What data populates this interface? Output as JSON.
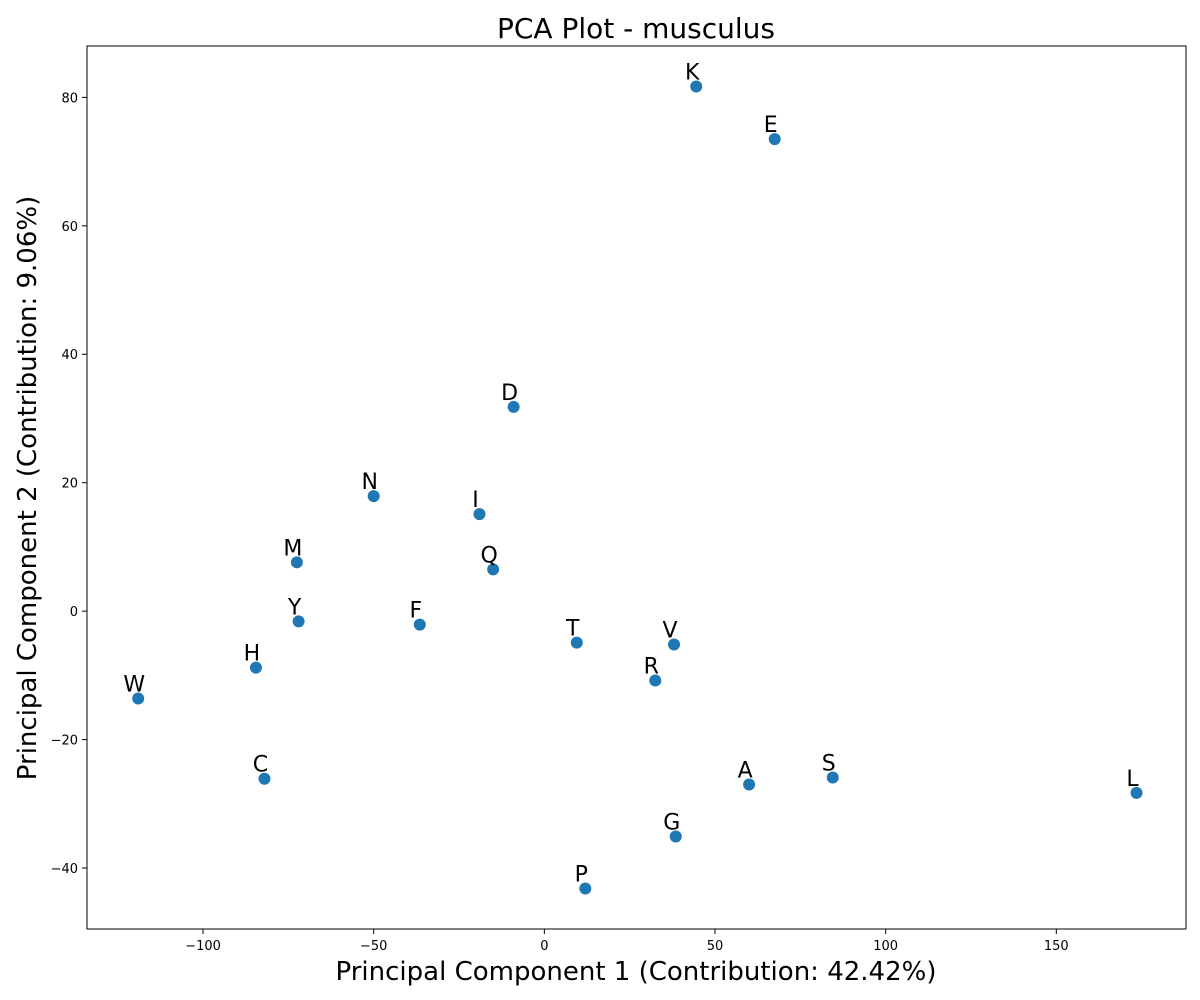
{
  "chart_data": {
    "type": "scatter",
    "title": "PCA Plot - musculus",
    "xlabel": "Principal Component 1 (Contribution: 42.42%)",
    "ylabel": "Principal Component 2 (Contribution: 9.06%)",
    "xlim": [
      -134,
      188
    ],
    "ylim": [
      -49.5,
      88
    ],
    "xticks": [
      -100,
      -50,
      0,
      50,
      100,
      150
    ],
    "yticks": [
      -40,
      -20,
      0,
      20,
      40,
      60,
      80
    ],
    "xtick_labels": [
      "−100",
      "−50",
      "0",
      "50",
      "100",
      "150"
    ],
    "ytick_labels": [
      "−40",
      "−20",
      "0",
      "20",
      "40",
      "60",
      "80"
    ],
    "grid": false,
    "point_color": "#1f77b4",
    "points": [
      {
        "label": "K",
        "x": 44.5,
        "y": 81.7
      },
      {
        "label": "E",
        "x": 67.5,
        "y": 73.5
      },
      {
        "label": "D",
        "x": -9,
        "y": 31.8
      },
      {
        "label": "N",
        "x": -50,
        "y": 17.9
      },
      {
        "label": "I",
        "x": -19,
        "y": 15.1
      },
      {
        "label": "M",
        "x": -72.5,
        "y": 7.6
      },
      {
        "label": "Q",
        "x": -15,
        "y": 6.5
      },
      {
        "label": "Y",
        "x": -72,
        "y": -1.6
      },
      {
        "label": "F",
        "x": -36.5,
        "y": -2.1
      },
      {
        "label": "T",
        "x": 9.5,
        "y": -4.9
      },
      {
        "label": "V",
        "x": 38,
        "y": -5.2
      },
      {
        "label": "H",
        "x": -84.5,
        "y": -8.8
      },
      {
        "label": "R",
        "x": 32.5,
        "y": -10.8
      },
      {
        "label": "W",
        "x": -119,
        "y": -13.6
      },
      {
        "label": "C",
        "x": -82,
        "y": -26.1
      },
      {
        "label": "S",
        "x": 84.5,
        "y": -25.9
      },
      {
        "label": "A",
        "x": 60,
        "y": -27.0
      },
      {
        "label": "L",
        "x": 173.5,
        "y": -28.3
      },
      {
        "label": "G",
        "x": 38.5,
        "y": -35.1
      },
      {
        "label": "P",
        "x": 12,
        "y": -43.2
      }
    ]
  }
}
